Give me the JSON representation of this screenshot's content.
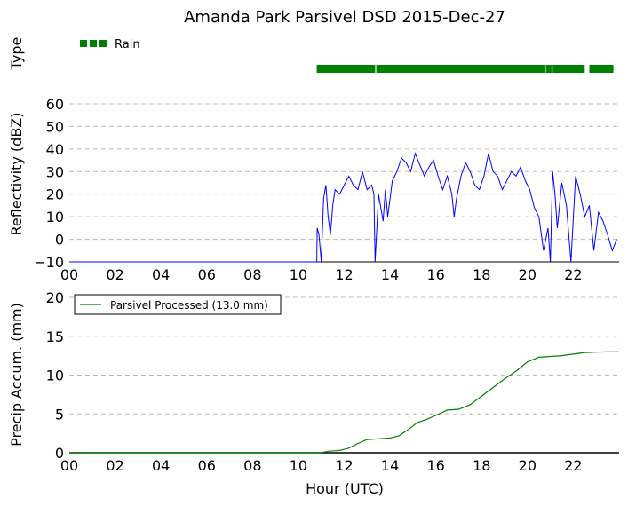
{
  "chart_data": [
    {
      "panel": "type",
      "type": "bar",
      "title": "Amanda Park Parsivel DSD 2015-Dec-27",
      "ylabel": "Type",
      "xlim": [
        0,
        24
      ],
      "legend": {
        "label": "Rain",
        "location": "top-left"
      },
      "colors": {
        "rain": "#008000"
      },
      "segments": [
        [
          10.8,
          13.35
        ],
        [
          13.4,
          20.75
        ],
        [
          20.8,
          21.05
        ],
        [
          21.1,
          22.5
        ],
        [
          22.7,
          23.75
        ]
      ]
    },
    {
      "panel": "reflectivity",
      "type": "line",
      "ylabel": "Reflectivity (dBZ)",
      "ylim": [
        -10,
        60
      ],
      "yticks": [
        "−10",
        "0",
        "10",
        "20",
        "30",
        "40",
        "50",
        "60"
      ],
      "xlim": [
        0,
        24
      ],
      "xticks": [
        "00",
        "02",
        "04",
        "06",
        "08",
        "10",
        "12",
        "14",
        "16",
        "18",
        "20",
        "22"
      ],
      "grid": true,
      "colors": {
        "line": "#0000ff"
      },
      "series": [
        {
          "x": [
            0,
            10.8,
            10.82,
            10.9,
            11.0,
            11.1,
            11.2,
            11.3,
            11.4,
            11.5,
            11.6,
            11.8,
            12.0,
            12.2,
            12.4,
            12.6,
            12.8,
            13.0,
            13.2,
            13.3,
            13.35,
            13.5,
            13.7,
            13.8,
            13.9,
            14.1,
            14.3,
            14.5,
            14.7,
            14.9,
            15.1,
            15.3,
            15.5,
            15.7,
            15.9,
            16.1,
            16.3,
            16.5,
            16.7,
            16.8,
            16.9,
            17.1,
            17.3,
            17.5,
            17.7,
            17.9,
            18.1,
            18.3,
            18.5,
            18.7,
            18.9,
            19.1,
            19.3,
            19.5,
            19.7,
            19.9,
            20.1,
            20.3,
            20.5,
            20.7,
            20.9,
            21.0,
            21.1,
            21.2,
            21.3,
            21.5,
            21.7,
            21.9,
            22.1,
            22.3,
            22.5,
            22.7,
            22.9,
            23.1,
            23.3,
            23.5,
            23.7,
            23.9
          ],
          "y": [
            -10,
            -10,
            5,
            2,
            -10,
            18,
            24,
            10,
            2,
            15,
            22,
            20,
            24,
            28,
            24,
            22,
            30,
            22,
            24,
            20,
            -10,
            20,
            8,
            22,
            10,
            26,
            30,
            36,
            34,
            30,
            38,
            33,
            28,
            32,
            35,
            28,
            22,
            28,
            20,
            10,
            18,
            28,
            34,
            30,
            24,
            22,
            28,
            38,
            30,
            28,
            22,
            26,
            30,
            28,
            32,
            26,
            22,
            14,
            10,
            -5,
            5,
            -10,
            30,
            20,
            5,
            25,
            15,
            -10,
            28,
            20,
            10,
            15,
            -5,
            12,
            8,
            2,
            -5,
            0
          ]
        }
      ]
    },
    {
      "panel": "precip",
      "type": "line",
      "ylabel": "Precip Accum. (mm)",
      "xlabel": "Hour (UTC)",
      "ylim": [
        0,
        20
      ],
      "yticks": [
        "0",
        "5",
        "10",
        "15",
        "20"
      ],
      "xlim": [
        0,
        24
      ],
      "xticks": [
        "00",
        "02",
        "04",
        "06",
        "08",
        "10",
        "12",
        "14",
        "16",
        "18",
        "20",
        "22"
      ],
      "grid": true,
      "legend": {
        "label": "Parsivel Processed (13.0 mm)",
        "location": "top-left"
      },
      "colors": {
        "line": "#008000"
      },
      "series": [
        {
          "name": "Parsivel Processed (13.0 mm)",
          "x": [
            0,
            10.8,
            11.0,
            11.3,
            11.8,
            12.2,
            12.6,
            13.0,
            13.5,
            14.0,
            14.4,
            14.8,
            15.2,
            15.6,
            16.0,
            16.5,
            17.0,
            17.5,
            18.0,
            18.5,
            19.0,
            19.5,
            20.0,
            20.5,
            21.0,
            21.5,
            22.0,
            22.5,
            23.0,
            23.5,
            24.0
          ],
          "y": [
            0,
            0,
            0,
            0.2,
            0.3,
            0.6,
            1.2,
            1.7,
            1.8,
            1.9,
            2.2,
            3.0,
            3.9,
            4.3,
            4.8,
            5.5,
            5.6,
            6.2,
            7.3,
            8.4,
            9.5,
            10.5,
            11.7,
            12.3,
            12.4,
            12.5,
            12.7,
            12.9,
            12.95,
            13.0,
            13.0
          ]
        }
      ]
    }
  ]
}
